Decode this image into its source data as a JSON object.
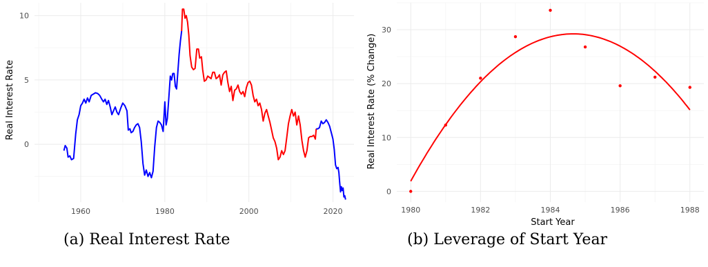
{
  "chart_data": [
    {
      "type": "line",
      "caption": "(a) Real Interest Rate",
      "xlabel": "",
      "ylabel": "Real Interest Rate",
      "xlim": [
        1949,
        2025
      ],
      "ylim": [
        -4.5,
        11
      ],
      "xticks": [
        1960,
        1980,
        2000,
        2020
      ],
      "yticks": [
        0,
        5,
        10
      ],
      "grid": true,
      "series": [
        {
          "color": "#0000ff",
          "points": [
            [
              1956,
              -0.5
            ],
            [
              1956.3,
              -0.1
            ],
            [
              1956.7,
              -0.3
            ],
            [
              1957,
              -1.0
            ],
            [
              1957.4,
              -0.9
            ],
            [
              1957.8,
              -1.2
            ],
            [
              1958.3,
              -1.1
            ],
            [
              1958.8,
              0.8
            ],
            [
              1959.2,
              1.9
            ],
            [
              1959.6,
              2.3
            ],
            [
              1960,
              3.0
            ],
            [
              1960.4,
              3.2
            ],
            [
              1960.8,
              3.5
            ],
            [
              1961.2,
              3.2
            ],
            [
              1961.6,
              3.6
            ],
            [
              1962,
              3.3
            ],
            [
              1962.5,
              3.8
            ],
            [
              1963,
              3.9
            ],
            [
              1963.5,
              4.0
            ],
            [
              1964,
              3.95
            ],
            [
              1964.5,
              3.8
            ],
            [
              1965,
              3.5
            ],
            [
              1965.4,
              3.3
            ],
            [
              1965.8,
              3.5
            ],
            [
              1966.2,
              3.1
            ],
            [
              1966.6,
              3.4
            ],
            [
              1967,
              2.9
            ],
            [
              1967.4,
              2.3
            ],
            [
              1967.8,
              2.6
            ],
            [
              1968.2,
              2.9
            ],
            [
              1968.6,
              2.5
            ],
            [
              1969,
              2.3
            ],
            [
              1969.5,
              2.8
            ],
            [
              1970,
              3.2
            ],
            [
              1970.5,
              3.0
            ],
            [
              1971,
              2.6
            ],
            [
              1971.3,
              1.1
            ],
            [
              1971.7,
              1.2
            ],
            [
              1972,
              0.9
            ],
            [
              1972.4,
              1.0
            ],
            [
              1972.8,
              1.3
            ],
            [
              1973.2,
              1.5
            ],
            [
              1973.6,
              1.6
            ],
            [
              1974,
              1.3
            ],
            [
              1974.4,
              0.2
            ],
            [
              1974.8,
              -1.5
            ],
            [
              1975.2,
              -2.4
            ],
            [
              1975.6,
              -2.0
            ],
            [
              1976,
              -2.5
            ],
            [
              1976.4,
              -2.2
            ],
            [
              1976.8,
              -2.6
            ],
            [
              1977.2,
              -2.1
            ],
            [
              1977.6,
              -0.2
            ],
            [
              1978,
              1.3
            ],
            [
              1978.4,
              1.8
            ],
            [
              1978.8,
              1.7
            ],
            [
              1979.2,
              1.5
            ],
            [
              1979.6,
              1.0
            ],
            [
              1980,
              3.3
            ],
            [
              1980.3,
              1.5
            ],
            [
              1980.6,
              2.0
            ],
            [
              1981,
              3.8
            ],
            [
              1981.3,
              5.3
            ],
            [
              1981.6,
              5.0
            ],
            [
              1981.9,
              5.5
            ],
            [
              1982.2,
              5.5
            ],
            [
              1982.5,
              4.5
            ],
            [
              1982.8,
              4.3
            ],
            [
              1983.1,
              5.6
            ],
            [
              1983.4,
              7.0
            ],
            [
              1983.7,
              8.0
            ],
            [
              1984,
              8.8
            ]
          ]
        },
        {
          "color": "#ff0000",
          "points": [
            [
              1984,
              8.8
            ],
            [
              1984.2,
              10.5
            ],
            [
              1984.5,
              10.5
            ],
            [
              1984.8,
              9.8
            ],
            [
              1985.1,
              10.0
            ],
            [
              1985.4,
              9.5
            ],
            [
              1985.7,
              8.5
            ],
            [
              1986,
              6.9
            ],
            [
              1986.4,
              6.0
            ],
            [
              1986.8,
              5.8
            ],
            [
              1987.2,
              5.9
            ],
            [
              1987.6,
              7.4
            ],
            [
              1988,
              7.4
            ],
            [
              1988.3,
              6.7
            ],
            [
              1988.7,
              6.8
            ],
            [
              1989,
              5.8
            ],
            [
              1989.4,
              4.9
            ],
            [
              1989.8,
              5.0
            ],
            [
              1990.2,
              5.3
            ],
            [
              1990.6,
              5.2
            ],
            [
              1991,
              5.1
            ],
            [
              1991.4,
              5.6
            ],
            [
              1991.8,
              5.6
            ],
            [
              1992.2,
              5.1
            ],
            [
              1992.6,
              5.2
            ],
            [
              1993,
              5.4
            ],
            [
              1993.4,
              4.6
            ],
            [
              1993.8,
              5.4
            ],
            [
              1994.2,
              5.6
            ],
            [
              1994.6,
              5.7
            ],
            [
              1995,
              4.8
            ],
            [
              1995.4,
              4.1
            ],
            [
              1995.8,
              4.5
            ],
            [
              1996.2,
              3.4
            ],
            [
              1996.6,
              4.2
            ],
            [
              1997,
              4.3
            ],
            [
              1997.4,
              4.6
            ],
            [
              1997.8,
              4.1
            ],
            [
              1998.2,
              3.9
            ],
            [
              1998.6,
              4.1
            ],
            [
              1999,
              3.7
            ],
            [
              1999.4,
              4.4
            ],
            [
              1999.8,
              4.8
            ],
            [
              2000.2,
              4.9
            ],
            [
              2000.6,
              4.6
            ],
            [
              2001,
              3.8
            ],
            [
              2001.4,
              3.3
            ],
            [
              2001.8,
              3.5
            ],
            [
              2002.2,
              3.0
            ],
            [
              2002.6,
              3.2
            ],
            [
              2003,
              2.7
            ],
            [
              2003.4,
              1.8
            ],
            [
              2003.8,
              2.4
            ],
            [
              2004.2,
              2.7
            ],
            [
              2004.6,
              2.2
            ],
            [
              2005,
              1.7
            ],
            [
              2005.4,
              1.1
            ],
            [
              2005.8,
              0.5
            ],
            [
              2006.2,
              0.2
            ],
            [
              2006.6,
              -0.3
            ],
            [
              2007,
              -1.2
            ],
            [
              2007.4,
              -1.0
            ],
            [
              2007.8,
              -0.5
            ],
            [
              2008.2,
              -0.8
            ],
            [
              2008.6,
              -0.5
            ],
            [
              2009,
              0.5
            ],
            [
              2009.4,
              1.6
            ],
            [
              2009.8,
              2.2
            ],
            [
              2010.2,
              2.7
            ],
            [
              2010.6,
              2.2
            ],
            [
              2011,
              2.5
            ],
            [
              2011.4,
              1.5
            ],
            [
              2011.8,
              2.2
            ],
            [
              2012.2,
              1.5
            ],
            [
              2012.6,
              0.3
            ],
            [
              2013,
              -0.5
            ],
            [
              2013.4,
              -1.0
            ],
            [
              2013.8,
              -0.5
            ],
            [
              2014.2,
              0.5
            ],
            [
              2014.6,
              0.6
            ],
            [
              2015,
              0.6
            ],
            [
              2015.4,
              0.7
            ],
            [
              2015.8,
              0.4
            ],
            [
              2016,
              1.2
            ]
          ]
        },
        {
          "color": "#0000ff",
          "points": [
            [
              2016,
              1.2
            ],
            [
              2016.4,
              1.2
            ],
            [
              2016.8,
              1.3
            ],
            [
              2017.2,
              1.8
            ],
            [
              2017.6,
              1.6
            ],
            [
              2018,
              1.7
            ],
            [
              2018.4,
              1.9
            ],
            [
              2018.8,
              1.7
            ],
            [
              2019.2,
              1.4
            ],
            [
              2019.6,
              0.9
            ],
            [
              2020,
              0.4
            ],
            [
              2020.3,
              -0.4
            ],
            [
              2020.6,
              -1.6
            ],
            [
              2020.9,
              -1.9
            ],
            [
              2021.2,
              -1.8
            ],
            [
              2021.4,
              -2.2
            ],
            [
              2021.6,
              -3.0
            ],
            [
              2021.8,
              -3.7
            ],
            [
              2022,
              -3.3
            ],
            [
              2022.2,
              -3.6
            ],
            [
              2022.4,
              -3.4
            ],
            [
              2022.6,
              -4.1
            ],
            [
              2022.8,
              -4.0
            ],
            [
              2023,
              -4.3
            ]
          ]
        }
      ]
    },
    {
      "type": "scatter",
      "caption": "(b) Leverage of Start Year",
      "xlabel": "Start Year",
      "ylabel": "Real Interest Rate (% Change)",
      "xlim": [
        1979.6,
        1988.4
      ],
      "ylim": [
        -2,
        35
      ],
      "xticks": [
        1980,
        1982,
        1984,
        1986,
        1988
      ],
      "yticks": [
        0,
        10,
        20,
        30
      ],
      "grid": true,
      "color": "#ff0000",
      "points": [
        [
          1980,
          0
        ],
        [
          1981,
          12.3
        ],
        [
          1982,
          21.0
        ],
        [
          1983,
          28.7
        ],
        [
          1984,
          33.6
        ],
        [
          1985,
          26.8
        ],
        [
          1986,
          19.6
        ],
        [
          1987,
          21.2
        ],
        [
          1988,
          19.3
        ]
      ],
      "fit": {
        "type": "quadratic",
        "color": "#ff0000"
      }
    }
  ]
}
